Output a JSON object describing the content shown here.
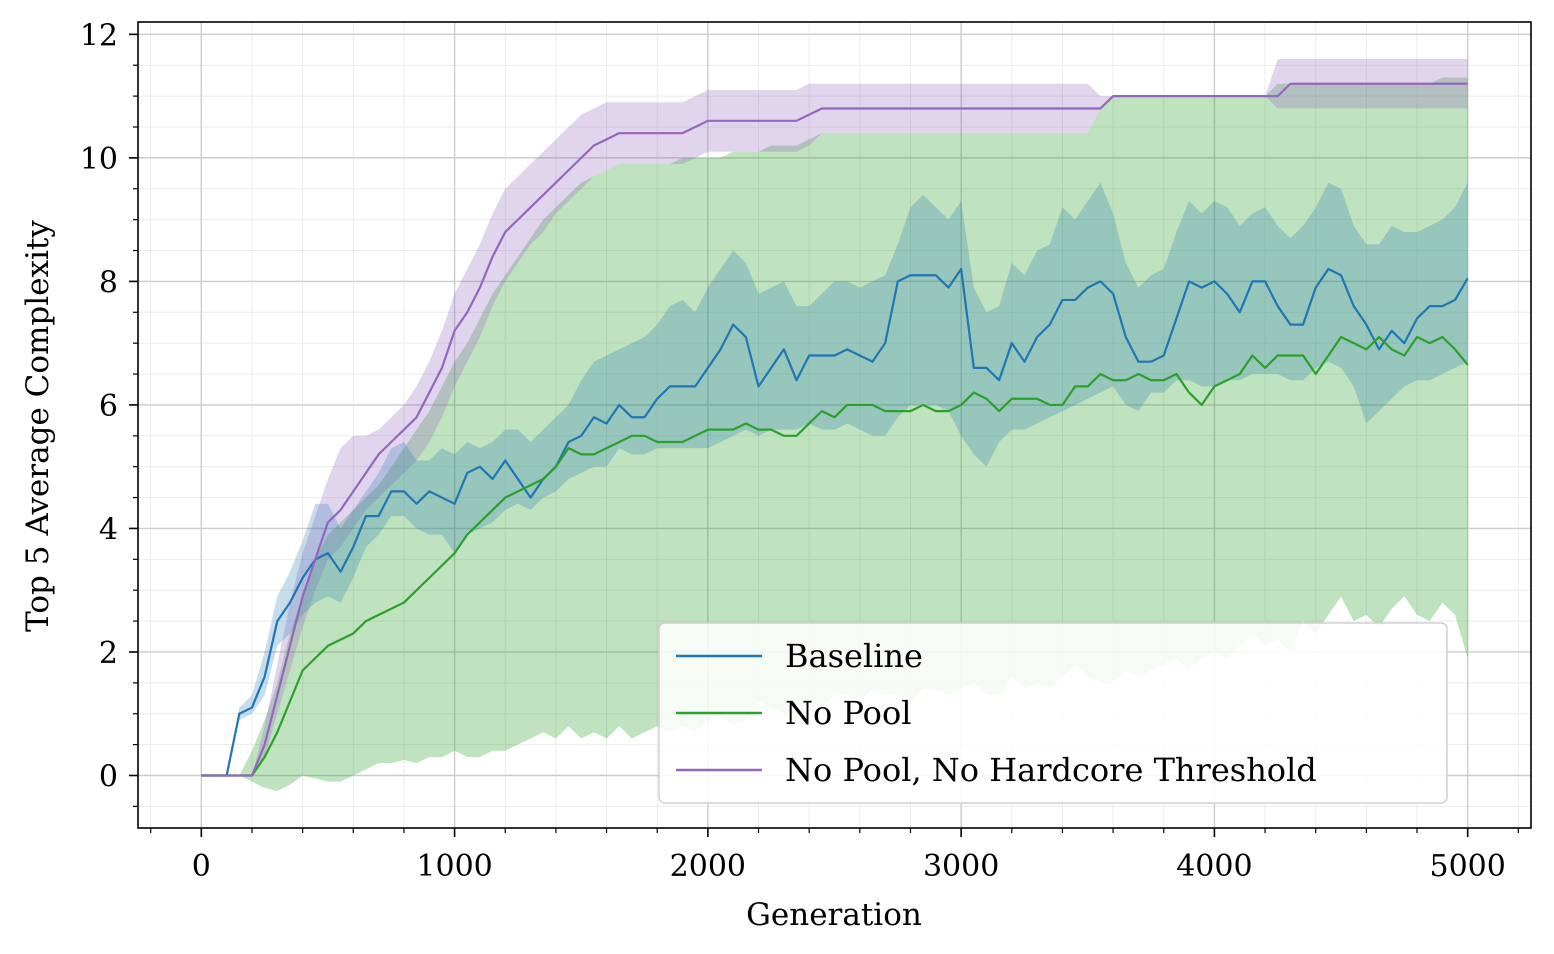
{
  "chart_data": {
    "type": "line",
    "title": "",
    "xlabel": "Generation",
    "ylabel": "Top 5 Average Complexity",
    "xlim": [
      -250,
      5250
    ],
    "ylim": [
      -0.85,
      12.2
    ],
    "x_ticks": [
      0,
      1000,
      2000,
      3000,
      4000,
      5000
    ],
    "x_tick_labels": [
      "0",
      "1000",
      "2000",
      "3000",
      "4000",
      "5000"
    ],
    "y_ticks": [
      0,
      2,
      4,
      6,
      8,
      10,
      12
    ],
    "y_tick_labels": [
      "0",
      "2",
      "4",
      "6",
      "8",
      "10",
      "12"
    ],
    "grid": true,
    "minor_grid": true,
    "legend_position": "lower-right",
    "series": [
      {
        "name": "Baseline",
        "color": "#1f77b4",
        "fill_color": "#1f77b4",
        "x": [
          0,
          100,
          150,
          200,
          250,
          300,
          350,
          400,
          450,
          500,
          550,
          600,
          650,
          700,
          750,
          800,
          850,
          900,
          950,
          1000,
          1050,
          1100,
          1150,
          1200,
          1250,
          1300,
          1350,
          1400,
          1450,
          1500,
          1550,
          1600,
          1650,
          1700,
          1750,
          1800,
          1850,
          1900,
          1950,
          2000,
          2050,
          2100,
          2150,
          2200,
          2250,
          2300,
          2350,
          2400,
          2450,
          2500,
          2550,
          2600,
          2650,
          2700,
          2750,
          2800,
          2850,
          2900,
          2950,
          3000,
          3050,
          3100,
          3150,
          3200,
          3250,
          3300,
          3350,
          3400,
          3450,
          3500,
          3550,
          3600,
          3650,
          3700,
          3750,
          3800,
          3850,
          3900,
          3950,
          4000,
          4050,
          4100,
          4150,
          4200,
          4250,
          4300,
          4350,
          4400,
          4450,
          4500,
          4550,
          4600,
          4650,
          4700,
          4750,
          4800,
          4850,
          4900,
          4950,
          5000
        ],
        "values": [
          0,
          0,
          1.0,
          1.1,
          1.6,
          2.5,
          2.8,
          3.2,
          3.5,
          3.6,
          3.3,
          3.7,
          4.2,
          4.2,
          4.6,
          4.6,
          4.4,
          4.6,
          4.5,
          4.4,
          4.9,
          5.0,
          4.8,
          5.1,
          4.8,
          4.5,
          4.8,
          5.0,
          5.4,
          5.5,
          5.8,
          5.7,
          6.0,
          5.8,
          5.8,
          6.1,
          6.3,
          6.3,
          6.3,
          6.6,
          6.9,
          7.3,
          7.1,
          6.3,
          6.6,
          6.9,
          6.4,
          6.8,
          6.8,
          6.8,
          6.9,
          6.8,
          6.7,
          7.0,
          8.0,
          8.1,
          8.1,
          8.1,
          7.9,
          8.2,
          6.6,
          6.6,
          6.4,
          7.0,
          6.7,
          7.1,
          7.3,
          7.7,
          7.7,
          7.9,
          8.0,
          7.8,
          7.1,
          6.7,
          6.7,
          6.8,
          7.4,
          8.0,
          7.9,
          8.0,
          7.8,
          7.5,
          8.0,
          8.0,
          7.6,
          7.3,
          7.3,
          7.9,
          8.2,
          8.1,
          7.6,
          7.3,
          6.9,
          7.2,
          7.0,
          7.4,
          7.6,
          7.6,
          7.7,
          8.05
        ],
        "lower": [
          0,
          0,
          0.9,
          1.0,
          1.3,
          2.1,
          2.3,
          2.6,
          2.8,
          2.9,
          2.8,
          3.2,
          3.7,
          3.9,
          4.2,
          4.2,
          4.0,
          3.9,
          3.9,
          3.6,
          3.9,
          4.0,
          4.1,
          4.3,
          4.4,
          4.3,
          4.5,
          4.6,
          4.8,
          4.9,
          5.0,
          5.0,
          5.3,
          5.2,
          5.2,
          5.3,
          5.3,
          5.3,
          5.3,
          5.3,
          5.4,
          5.5,
          5.6,
          5.5,
          5.6,
          5.6,
          5.6,
          5.7,
          5.6,
          5.6,
          5.7,
          5.6,
          5.5,
          5.5,
          5.8,
          6.0,
          6.0,
          6.0,
          5.9,
          5.5,
          5.2,
          5.0,
          5.4,
          5.6,
          5.6,
          5.7,
          5.8,
          5.9,
          6.0,
          6.1,
          6.2,
          6.3,
          6.0,
          5.9,
          6.2,
          6.2,
          6.4,
          6.4,
          6.3,
          6.3,
          6.4,
          6.4,
          6.5,
          6.5,
          6.5,
          6.4,
          6.4,
          6.6,
          6.7,
          6.6,
          6.3,
          5.7,
          5.9,
          6.1,
          6.3,
          6.4,
          6.4,
          6.5,
          6.6,
          6.7
        ],
        "upper": [
          0,
          0,
          1.1,
          1.3,
          2.0,
          2.9,
          3.3,
          3.8,
          4.4,
          4.4,
          4.0,
          4.3,
          4.6,
          4.9,
          5.3,
          5.4,
          5.1,
          5.1,
          5.3,
          5.2,
          5.4,
          5.3,
          5.4,
          5.6,
          5.6,
          5.4,
          5.6,
          5.8,
          6.0,
          6.4,
          6.7,
          6.8,
          6.9,
          7.0,
          7.1,
          7.3,
          7.6,
          7.7,
          7.5,
          7.9,
          8.2,
          8.5,
          8.3,
          7.8,
          7.9,
          8.0,
          7.6,
          7.6,
          7.8,
          8.0,
          8.0,
          7.9,
          8.0,
          8.1,
          8.6,
          9.2,
          9.4,
          9.2,
          9.0,
          9.3,
          7.9,
          7.5,
          7.6,
          8.3,
          8.1,
          8.5,
          8.6,
          9.2,
          9.0,
          9.3,
          9.6,
          9.1,
          8.3,
          7.9,
          8.1,
          8.2,
          8.8,
          9.3,
          9.1,
          9.3,
          9.2,
          8.9,
          9.1,
          9.2,
          8.9,
          8.7,
          8.9,
          9.2,
          9.6,
          9.5,
          8.9,
          8.6,
          8.6,
          8.9,
          8.8,
          8.8,
          8.9,
          9.0,
          9.2,
          9.6
        ]
      },
      {
        "name": "No Pool",
        "color": "#2ca02c",
        "fill_color": "#2ca02c",
        "x": [
          0,
          100,
          150,
          200,
          250,
          300,
          350,
          400,
          450,
          500,
          550,
          600,
          650,
          700,
          750,
          800,
          850,
          900,
          950,
          1000,
          1050,
          1100,
          1150,
          1200,
          1250,
          1300,
          1350,
          1400,
          1450,
          1500,
          1550,
          1600,
          1650,
          1700,
          1750,
          1800,
          1850,
          1900,
          1950,
          2000,
          2050,
          2100,
          2150,
          2200,
          2250,
          2300,
          2350,
          2400,
          2450,
          2500,
          2550,
          2600,
          2650,
          2700,
          2750,
          2800,
          2850,
          2900,
          2950,
          3000,
          3050,
          3100,
          3150,
          3200,
          3250,
          3300,
          3350,
          3400,
          3450,
          3500,
          3550,
          3600,
          3650,
          3700,
          3750,
          3800,
          3850,
          3900,
          3950,
          4000,
          4050,
          4100,
          4150,
          4200,
          4250,
          4300,
          4350,
          4400,
          4450,
          4500,
          4550,
          4600,
          4650,
          4700,
          4750,
          4800,
          4850,
          4900,
          4950,
          5000
        ],
        "values": [
          0,
          0,
          0,
          0,
          0.3,
          0.7,
          1.2,
          1.7,
          1.9,
          2.1,
          2.2,
          2.3,
          2.5,
          2.6,
          2.7,
          2.8,
          3.0,
          3.2,
          3.4,
          3.6,
          3.9,
          4.1,
          4.3,
          4.5,
          4.6,
          4.7,
          4.8,
          5.0,
          5.3,
          5.2,
          5.2,
          5.3,
          5.4,
          5.5,
          5.5,
          5.4,
          5.4,
          5.4,
          5.5,
          5.6,
          5.6,
          5.6,
          5.7,
          5.6,
          5.6,
          5.5,
          5.5,
          5.7,
          5.9,
          5.8,
          6.0,
          6.0,
          6.0,
          5.9,
          5.9,
          5.9,
          6.0,
          5.9,
          5.9,
          6.0,
          6.2,
          6.1,
          5.9,
          6.1,
          6.1,
          6.1,
          6.0,
          6.0,
          6.3,
          6.3,
          6.5,
          6.4,
          6.4,
          6.5,
          6.4,
          6.4,
          6.5,
          6.2,
          6.0,
          6.3,
          6.4,
          6.5,
          6.8,
          6.6,
          6.8,
          6.8,
          6.8,
          6.5,
          6.8,
          7.1,
          7.0,
          6.9,
          7.1,
          6.9,
          6.8,
          7.1,
          7.0,
          7.1,
          6.9,
          6.65
        ],
        "lower": [
          0,
          0,
          0,
          -0.1,
          -0.2,
          -0.25,
          -0.15,
          0.0,
          -0.05,
          -0.1,
          -0.1,
          0.0,
          0.1,
          0.2,
          0.2,
          0.25,
          0.2,
          0.3,
          0.3,
          0.4,
          0.3,
          0.3,
          0.4,
          0.4,
          0.5,
          0.6,
          0.7,
          0.6,
          0.8,
          0.6,
          0.7,
          0.6,
          0.8,
          0.6,
          0.7,
          0.8,
          0.7,
          0.8,
          0.7,
          0.9,
          1.0,
          0.8,
          0.9,
          1.2,
          1.1,
          1.0,
          1.0,
          1.2,
          1.1,
          1.3,
          1.3,
          1.2,
          1.4,
          1.3,
          1.3,
          1.2,
          1.4,
          1.4,
          1.3,
          1.4,
          1.5,
          1.3,
          1.3,
          1.6,
          1.4,
          1.5,
          1.4,
          1.6,
          1.8,
          1.6,
          1.5,
          1.5,
          1.7,
          1.6,
          1.7,
          1.8,
          1.9,
          1.7,
          1.9,
          2.0,
          1.9,
          2.1,
          2.3,
          2.1,
          2.2,
          2.0,
          2.5,
          2.3,
          2.6,
          2.9,
          2.5,
          2.6,
          2.4,
          2.7,
          2.9,
          2.6,
          2.5,
          2.8,
          2.6,
          1.9
        ],
        "upper": [
          0,
          0,
          0,
          0.4,
          0.9,
          1.5,
          2.3,
          2.9,
          3.5,
          3.9,
          4.1,
          4.3,
          4.5,
          4.7,
          5.0,
          5.3,
          5.6,
          5.9,
          6.3,
          6.7,
          7.0,
          7.4,
          7.8,
          8.1,
          8.4,
          8.7,
          9.0,
          9.2,
          9.4,
          9.6,
          9.7,
          9.8,
          9.9,
          9.9,
          9.9,
          9.9,
          9.9,
          10.0,
          10.0,
          10.0,
          10.0,
          10.1,
          10.1,
          10.1,
          10.2,
          10.2,
          10.2,
          10.3,
          10.4,
          10.4,
          10.4,
          10.4,
          10.4,
          10.4,
          10.4,
          10.4,
          10.4,
          10.4,
          10.4,
          10.4,
          10.4,
          10.4,
          10.4,
          10.4,
          10.4,
          10.4,
          10.4,
          10.4,
          10.4,
          10.4,
          10.8,
          11.0,
          11.0,
          11.0,
          11.0,
          11.0,
          11.0,
          11.0,
          11.0,
          11.0,
          11.0,
          11.0,
          11.0,
          11.0,
          11.2,
          11.2,
          11.2,
          11.2,
          11.2,
          11.2,
          11.2,
          11.2,
          11.2,
          11.2,
          11.2,
          11.2,
          11.2,
          11.3,
          11.3,
          11.3
        ]
      },
      {
        "name": "No Pool, No Hardcore Threshold",
        "color": "#9467bd",
        "fill_color": "#9467bd",
        "x": [
          0,
          100,
          150,
          200,
          250,
          300,
          350,
          400,
          450,
          500,
          550,
          600,
          650,
          700,
          750,
          800,
          850,
          900,
          950,
          1000,
          1050,
          1100,
          1150,
          1200,
          1250,
          1300,
          1350,
          1400,
          1450,
          1500,
          1550,
          1600,
          1650,
          1700,
          1750,
          1800,
          1850,
          1900,
          1950,
          2000,
          2050,
          2100,
          2150,
          2200,
          2250,
          2300,
          2350,
          2400,
          2450,
          2500,
          2550,
          2600,
          2650,
          2700,
          2750,
          2800,
          2850,
          2900,
          2950,
          3000,
          3050,
          3100,
          3150,
          3200,
          3250,
          3300,
          3350,
          3400,
          3450,
          3500,
          3550,
          3600,
          3650,
          3700,
          3750,
          3800,
          3850,
          3900,
          3950,
          4000,
          4050,
          4100,
          4150,
          4200,
          4250,
          4300,
          4350,
          4400,
          4450,
          4500,
          4550,
          4600,
          4650,
          4700,
          4750,
          4800,
          4850,
          4900,
          4950,
          5000
        ],
        "values": [
          0,
          0,
          0,
          0,
          0.5,
          1.3,
          2.1,
          2.9,
          3.5,
          4.1,
          4.3,
          4.6,
          4.9,
          5.2,
          5.4,
          5.6,
          5.8,
          6.2,
          6.6,
          7.2,
          7.5,
          7.9,
          8.4,
          8.8,
          9.0,
          9.2,
          9.4,
          9.6,
          9.8,
          10.0,
          10.2,
          10.3,
          10.4,
          10.4,
          10.4,
          10.4,
          10.4,
          10.4,
          10.5,
          10.6,
          10.6,
          10.6,
          10.6,
          10.6,
          10.6,
          10.6,
          10.6,
          10.7,
          10.8,
          10.8,
          10.8,
          10.8,
          10.8,
          10.8,
          10.8,
          10.8,
          10.8,
          10.8,
          10.8,
          10.8,
          10.8,
          10.8,
          10.8,
          10.8,
          10.8,
          10.8,
          10.8,
          10.8,
          10.8,
          10.8,
          10.8,
          11.0,
          11.0,
          11.0,
          11.0,
          11.0,
          11.0,
          11.0,
          11.0,
          11.0,
          11.0,
          11.0,
          11.0,
          11.0,
          11.0,
          11.2,
          11.2,
          11.2,
          11.2,
          11.2,
          11.2,
          11.2,
          11.2,
          11.2,
          11.2,
          11.2,
          11.2,
          11.2,
          11.2,
          11.2
        ],
        "lower": [
          0,
          0,
          0,
          0,
          0.3,
          1.0,
          1.7,
          2.4,
          3.0,
          3.5,
          3.7,
          4.0,
          4.3,
          4.5,
          4.7,
          4.9,
          5.1,
          5.4,
          5.8,
          6.3,
          6.7,
          7.1,
          7.6,
          8.0,
          8.3,
          8.6,
          8.8,
          9.1,
          9.3,
          9.5,
          9.7,
          9.8,
          9.9,
          9.9,
          9.9,
          9.9,
          9.9,
          9.9,
          10.0,
          10.1,
          10.1,
          10.1,
          10.1,
          10.1,
          10.1,
          10.1,
          10.1,
          10.2,
          10.4,
          10.4,
          10.4,
          10.4,
          10.4,
          10.4,
          10.4,
          10.4,
          10.4,
          10.4,
          10.4,
          10.4,
          10.4,
          10.4,
          10.4,
          10.4,
          10.4,
          10.4,
          10.4,
          10.4,
          10.4,
          10.4,
          10.8,
          11.0,
          11.0,
          11.0,
          11.0,
          11.0,
          11.0,
          11.0,
          11.0,
          11.0,
          11.0,
          11.0,
          11.0,
          11.0,
          10.8,
          10.8,
          10.8,
          10.8,
          10.8,
          10.8,
          10.8,
          10.8,
          10.8,
          10.8,
          10.8,
          10.8,
          10.8,
          10.8,
          10.8,
          10.8
        ],
        "upper": [
          0,
          0,
          0,
          0,
          0.8,
          1.8,
          2.8,
          3.6,
          4.2,
          4.8,
          5.3,
          5.5,
          5.5,
          5.6,
          5.8,
          6.0,
          6.3,
          6.7,
          7.2,
          7.8,
          8.2,
          8.6,
          9.1,
          9.5,
          9.7,
          9.9,
          10.1,
          10.3,
          10.5,
          10.7,
          10.8,
          10.9,
          10.9,
          10.9,
          10.9,
          10.9,
          10.9,
          10.9,
          11.0,
          11.1,
          11.1,
          11.1,
          11.1,
          11.1,
          11.1,
          11.1,
          11.1,
          11.2,
          11.2,
          11.2,
          11.2,
          11.2,
          11.2,
          11.2,
          11.2,
          11.2,
          11.2,
          11.2,
          11.2,
          11.2,
          11.2,
          11.2,
          11.2,
          11.2,
          11.2,
          11.2,
          11.2,
          11.2,
          11.2,
          11.2,
          11.0,
          11.0,
          11.0,
          11.0,
          11.0,
          11.0,
          11.0,
          11.0,
          11.0,
          11.0,
          11.0,
          11.0,
          11.0,
          11.0,
          11.6,
          11.6,
          11.6,
          11.6,
          11.6,
          11.6,
          11.6,
          11.6,
          11.6,
          11.6,
          11.6,
          11.6,
          11.6,
          11.6,
          11.6,
          11.6
        ]
      }
    ]
  }
}
